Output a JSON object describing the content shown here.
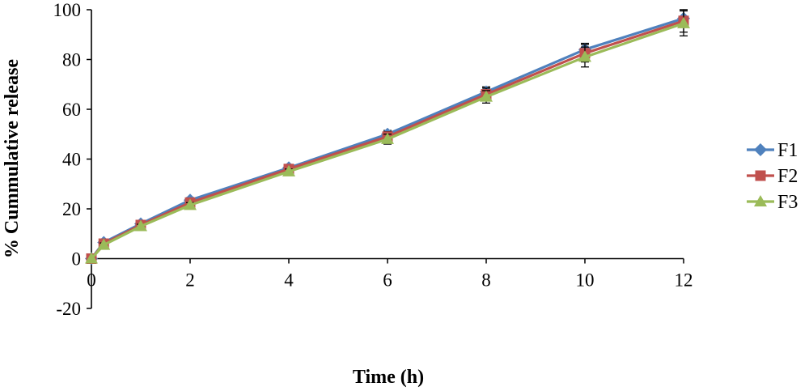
{
  "chart_data": {
    "type": "line",
    "xlabel": "Time (h)",
    "ylabel": "% Cummulative release",
    "xlim": [
      0,
      12
    ],
    "ylim": [
      -20,
      100
    ],
    "x_ticks": [
      "0",
      "2",
      "4",
      "6",
      "8",
      "10",
      "12"
    ],
    "y_ticks": [
      "-20",
      "0",
      "20",
      "40",
      "60",
      "80",
      "100"
    ],
    "grid": false,
    "legend_position": "right",
    "series": [
      {
        "name": "F1",
        "color": "#4F81BD",
        "marker": "diamond",
        "x": [
          0,
          0.25,
          1,
          2,
          4,
          6,
          8,
          10,
          12
        ],
        "values": [
          0,
          6.5,
          14,
          23.5,
          36.5,
          50,
          67,
          84,
          96.5
        ],
        "error": [
          0,
          0.8,
          0.8,
          1,
          1,
          1.5,
          2,
          2.5,
          3.5
        ]
      },
      {
        "name": "F2",
        "color": "#C0504D",
        "marker": "square",
        "x": [
          0,
          0.25,
          1,
          2,
          4,
          6,
          8,
          10,
          12
        ],
        "values": [
          0,
          6,
          13.5,
          22.5,
          36,
          49,
          66,
          82.5,
          95.5
        ],
        "error": [
          0,
          0.8,
          0.8,
          1,
          1,
          2,
          2.5,
          3.5,
          4.5
        ]
      },
      {
        "name": "F3",
        "color": "#9BBB59",
        "marker": "triangle",
        "x": [
          0,
          0.25,
          1,
          2,
          4,
          6,
          8,
          10,
          12
        ],
        "values": [
          0,
          5.5,
          13,
          21.5,
          35,
          48,
          65,
          81,
          94.5
        ],
        "error": [
          0,
          0.8,
          0.8,
          1,
          1,
          2,
          2.5,
          4,
          5
        ]
      }
    ]
  }
}
